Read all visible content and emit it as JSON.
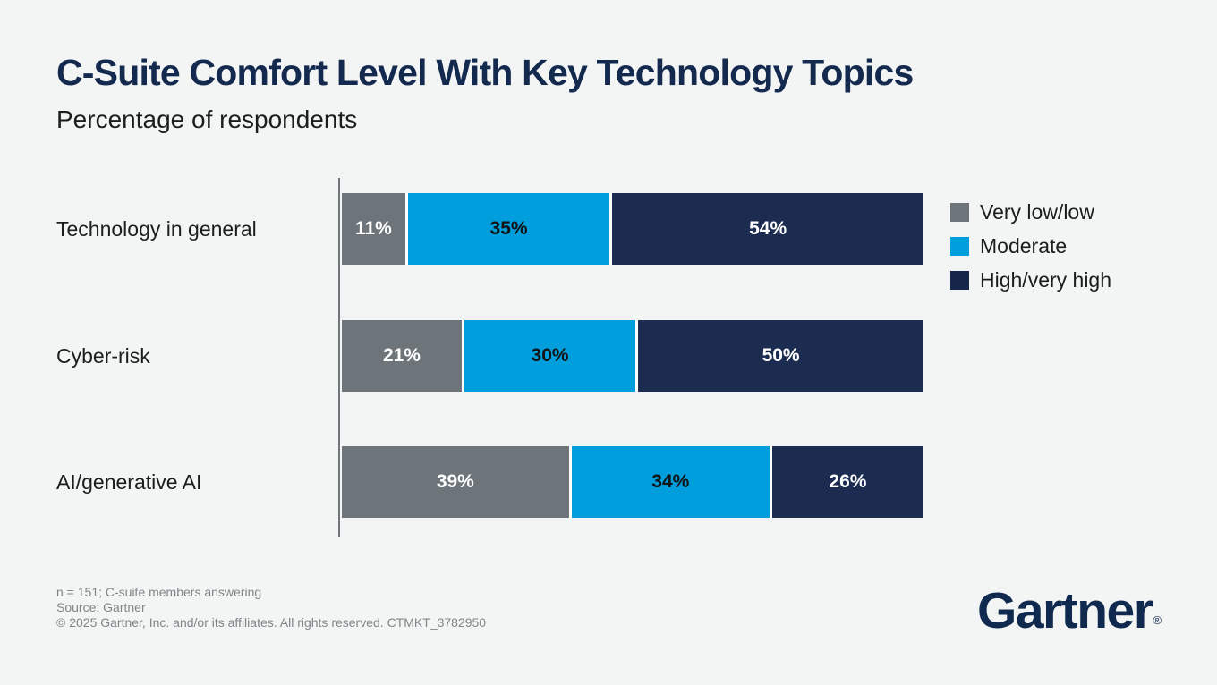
{
  "title": "C-Suite Comfort Level With Key Technology Topics",
  "subtitle": "Percentage of respondents",
  "chart_data": {
    "type": "bar",
    "orientation": "horizontal",
    "stacked": true,
    "title": "C-Suite Comfort Level With Key Technology Topics",
    "subtitle": "Percentage of respondents",
    "categories": [
      "Technology in general",
      "Cyber-risk",
      "AI/generative AI"
    ],
    "series": [
      {
        "name": "Very low/low",
        "color": "#6d757a",
        "label_color": "#ffffff",
        "values": [
          11,
          21,
          39
        ]
      },
      {
        "name": "Moderate",
        "color": "#009edd",
        "label_color": "#111315",
        "values": [
          35,
          30,
          34
        ]
      },
      {
        "name": "High/very high",
        "color": "#1c2b50",
        "label_color": "#ffffff",
        "values": [
          54,
          50,
          26
        ]
      }
    ],
    "value_suffix": "%",
    "xlim": [
      0,
      100
    ],
    "grid": false,
    "legend_position": "right"
  },
  "legend": {
    "items": [
      {
        "label": "Very low/low",
        "color": "#6d757a"
      },
      {
        "label": "Moderate",
        "color": "#009edd"
      },
      {
        "label": "High/very high",
        "color": "#15264a"
      }
    ]
  },
  "footnotes": [
    "n = 151; C-suite members answering",
    "Source: Gartner",
    "© 2025 Gartner, Inc. and/or its affiliates. All rights reserved. CTMKT_3782950"
  ],
  "logo": {
    "text": "Gartner",
    "registered": "®"
  },
  "colors": {
    "background": "#f3f4f4",
    "title": "#13294e",
    "axis_line": "#6f777b",
    "footnote": "#7f8689",
    "logo": "#0f2a4e"
  }
}
